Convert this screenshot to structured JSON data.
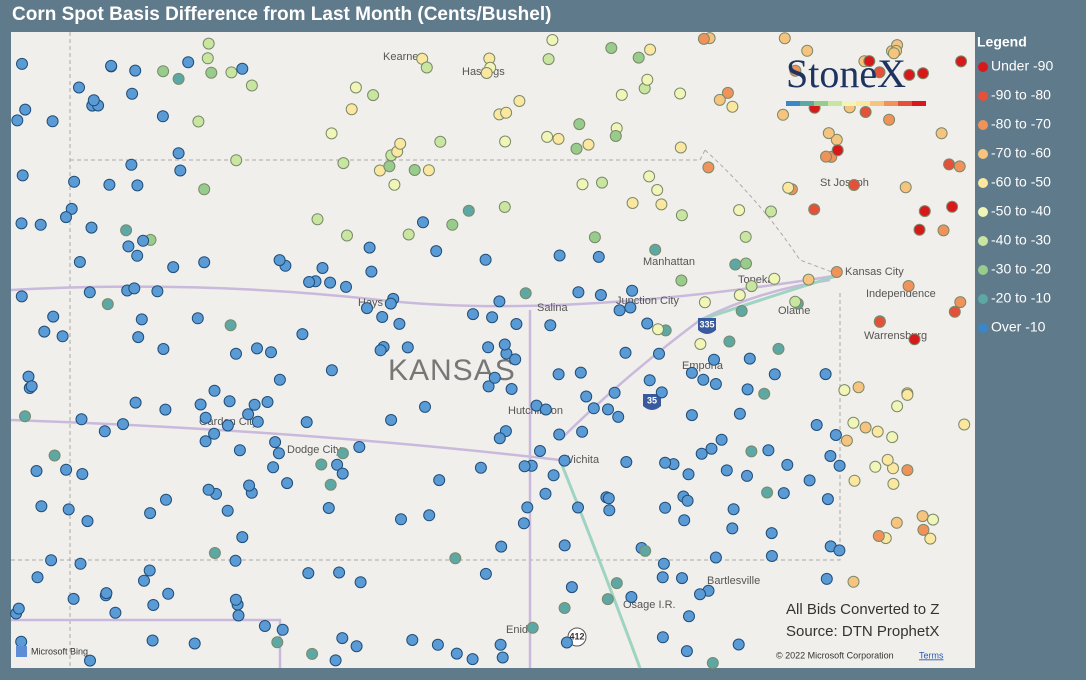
{
  "title": "Corn Spot Basis Difference from Last Month (Cents/Bushel)",
  "legend": {
    "title": "Legend",
    "items": [
      {
        "label": "Under -90",
        "color": "#d7191c"
      },
      {
        "label": "-90 to -80",
        "color": "#e4513b"
      },
      {
        "label": "-80 to -70",
        "color": "#f0925a"
      },
      {
        "label": "-70 to -60",
        "color": "#f7c47f"
      },
      {
        "label": "-60 to -50",
        "color": "#fce7a1"
      },
      {
        "label": "-50 to -40",
        "color": "#f1f6b8"
      },
      {
        "label": "-40 to -30",
        "color": "#c9e6a1"
      },
      {
        "label": "-30 to -20",
        "color": "#97cc8c"
      },
      {
        "label": "-20 to -10",
        "color": "#5da7a5"
      },
      {
        "label": "Over -10",
        "color": "#3b86c4"
      }
    ]
  },
  "logo": "StoneX",
  "map_labels": {
    "kearney": "Kearney",
    "hastings": "Hastings",
    "st_joseph": "St Joseph",
    "manhattan": "Manhattan",
    "junction_city": "Junction City",
    "topeka": "Topeka",
    "kansas_city": "Kansas City",
    "independence": "Independence",
    "olathe": "Olathe",
    "hays": "Hays",
    "salina": "Salina",
    "kansas": "KANSAS",
    "emporia": "Emporia",
    "warrensburg": "Warrensburg",
    "garden_city": "Garden City",
    "dodge_city": "Dodge City",
    "hutchinson": "Hutchinson",
    "wichita": "Wichita",
    "bartlesville": "Bartlesville",
    "osage": "Osage I.R.",
    "enid": "Enid"
  },
  "highway_shields": [
    "335",
    "35",
    "412"
  ],
  "notes": {
    "converted": "All Bids Converted to Z",
    "source": "Source: DTN ProphetX"
  },
  "attribution": {
    "bing": "Microsoft Bing",
    "copyright": "© 2022 Microsoft Corporation",
    "terms": "Terms"
  }
}
